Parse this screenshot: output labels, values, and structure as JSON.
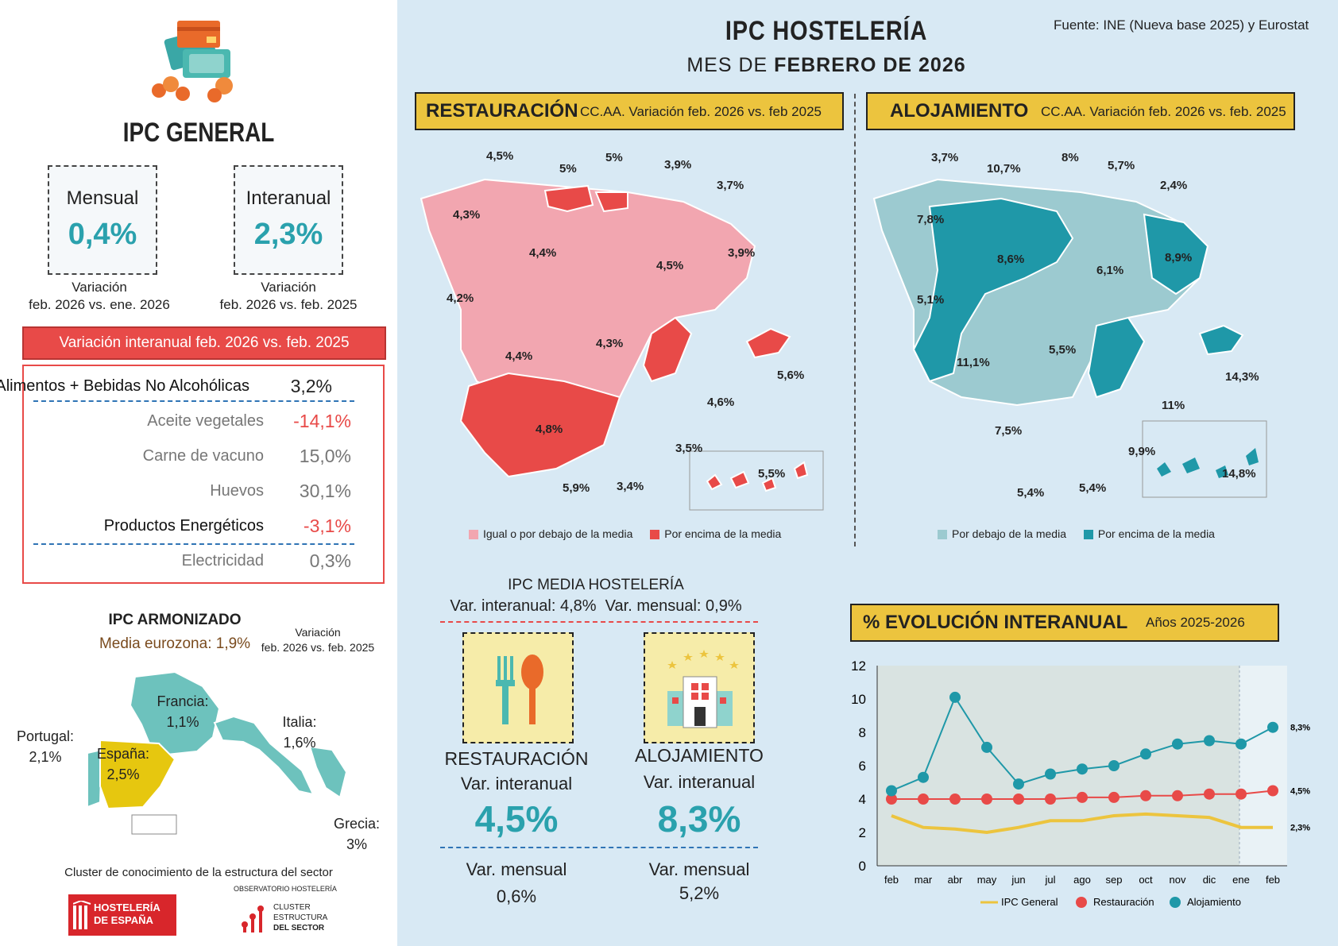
{
  "header": {
    "title": "IPC HOSTELERÍA",
    "subtitle_prefix": "MES DE",
    "subtitle_bold": "FEBRERO DE 2026",
    "source": "Fuente: INE (Nueva base 2025) y Eurostat"
  },
  "ipc_general": {
    "title": "IPC GENERAL",
    "mensual": {
      "label": "Mensual",
      "value": "0,4%",
      "caption1": "Variación",
      "caption2": "feb. 2026 vs. ene. 2026"
    },
    "interanual": {
      "label": "Interanual",
      "value": "2,3%",
      "caption1": "Variación",
      "caption2": "feb. 2026 vs. feb. 2025"
    },
    "table_header": "Variación interanual feb. 2026 vs. feb. 2025",
    "rows": [
      {
        "label": "Alimentos + Bebidas No Alcohólicas",
        "value": "3,2%"
      },
      {
        "label": "Aceite vegetales",
        "value": "-14,1%"
      },
      {
        "label": "Carne de vacuno",
        "value": "15,0%"
      },
      {
        "label": "Huevos",
        "value": "30,1%"
      },
      {
        "label": "Productos Energéticos",
        "value": "-3,1%"
      },
      {
        "label": "Electricidad",
        "value": "0,3%"
      }
    ]
  },
  "ipc_armonizado": {
    "title": "IPC ARMONIZADO",
    "media": "Media eurozona: 1,9%",
    "var1": "Variación",
    "var2": "feb. 2026 vs. feb. 2025",
    "countries": [
      {
        "name": "Francia:",
        "value": "1,1%"
      },
      {
        "name": "Italia:",
        "value": "1,6%"
      },
      {
        "name": "Portugal:",
        "value": "2,1%"
      },
      {
        "name": "España:",
        "value": "2,5%"
      },
      {
        "name": "Grecia:",
        "value": "3%"
      }
    ]
  },
  "footer": {
    "cluster": "Cluster de conocimiento de la estructura del sector",
    "logo1_line1": "HOSTELERÍA",
    "logo1_line2": "DE ESPAÑA",
    "obs": "OBSERVATORIO HOSTELERÍA",
    "logo2_line1": "CLUSTER",
    "logo2_line2": "ESTRUCTURA",
    "logo2_line3": "DEL SECTOR"
  },
  "restauracion_map": {
    "title": "RESTAURACIÓN",
    "subtitle": "CC.AA. Variación feb. 2026 vs. feb 2025",
    "labels": [
      "4,5%",
      "5%",
      "5%",
      "3,9%",
      "3,7%",
      "4,3%",
      "4,4%",
      "4,5%",
      "3,9%",
      "4,2%",
      "4,3%",
      "4,4%",
      "4,6%",
      "5,6%",
      "4,8%",
      "3,5%",
      "5,9%",
      "3,4%",
      "5,5%"
    ],
    "legend_below": "Igual o por debajo de la media",
    "legend_above": "Por encima de la media",
    "colors": {
      "below": "#f2a6b0",
      "above": "#e84a48"
    }
  },
  "alojamiento_map": {
    "title": "ALOJAMIENTO",
    "subtitle": "CC.AA. Variación feb. 2026 vs. feb. 2025",
    "labels": [
      "3,7%",
      "10,7%",
      "8%",
      "5,7%",
      "2,4%",
      "7,8%",
      "8,6%",
      "6,1%",
      "8,9%",
      "5,1%",
      "5,5%",
      "11,1%",
      "14,3%",
      "11%",
      "7,5%",
      "9,9%",
      "5,4%",
      "5,4%",
      "14,8%"
    ],
    "legend_below": "Por debajo de la media",
    "legend_above": "Por encima de la media",
    "colors": {
      "below": "#9ccad0",
      "above": "#1f98a8"
    }
  },
  "media_hosteleria": {
    "title": "IPC MEDIA HOSTELERÍA",
    "subtitle": "Var. interanual: 4,8%  Var. mensual: 0,9%",
    "restauracion": {
      "name": "RESTAURACIÓN",
      "label": "Var. interanual",
      "value": "4,5%",
      "mensual_label": "Var. mensual",
      "mensual_value": "0,6%"
    },
    "alojamiento": {
      "name": "ALOJAMIENTO",
      "label": "Var. interanual",
      "value": "8,3%",
      "mensual_label": "Var. mensual",
      "mensual_value": "5,2%"
    }
  },
  "evolucion": {
    "title": "% EVOLUCIÓN INTERANUAL",
    "subtitle": "Años 2025-2026"
  },
  "chart_data": {
    "type": "line",
    "x": [
      "feb",
      "mar",
      "abr",
      "may",
      "jun",
      "jul",
      "ago",
      "sep",
      "oct",
      "nov",
      "dic",
      "ene",
      "feb"
    ],
    "ylim": [
      0,
      12
    ],
    "yticks": [
      0,
      2,
      4,
      6,
      8,
      10,
      12
    ],
    "series": [
      {
        "name": "IPC General",
        "color": "#ecc43e",
        "values": [
          3.0,
          2.3,
          2.2,
          2.0,
          2.3,
          2.7,
          2.7,
          3.0,
          3.1,
          3.0,
          2.9,
          2.3,
          2.3
        ],
        "end_label": "2,3%"
      },
      {
        "name": "Restauración",
        "color": "#e84a48",
        "values": [
          4.0,
          4.0,
          4.0,
          4.0,
          4.0,
          4.0,
          4.1,
          4.1,
          4.2,
          4.2,
          4.3,
          4.3,
          4.5
        ],
        "end_label": "4,5%"
      },
      {
        "name": "Alojamiento",
        "color": "#1f98a8",
        "values": [
          4.5,
          5.3,
          10.1,
          7.1,
          4.9,
          5.5,
          5.8,
          6.0,
          6.7,
          7.3,
          7.5,
          7.3,
          8.3
        ],
        "end_label": "8,3%"
      }
    ],
    "grid": false,
    "legend": "bottom"
  }
}
